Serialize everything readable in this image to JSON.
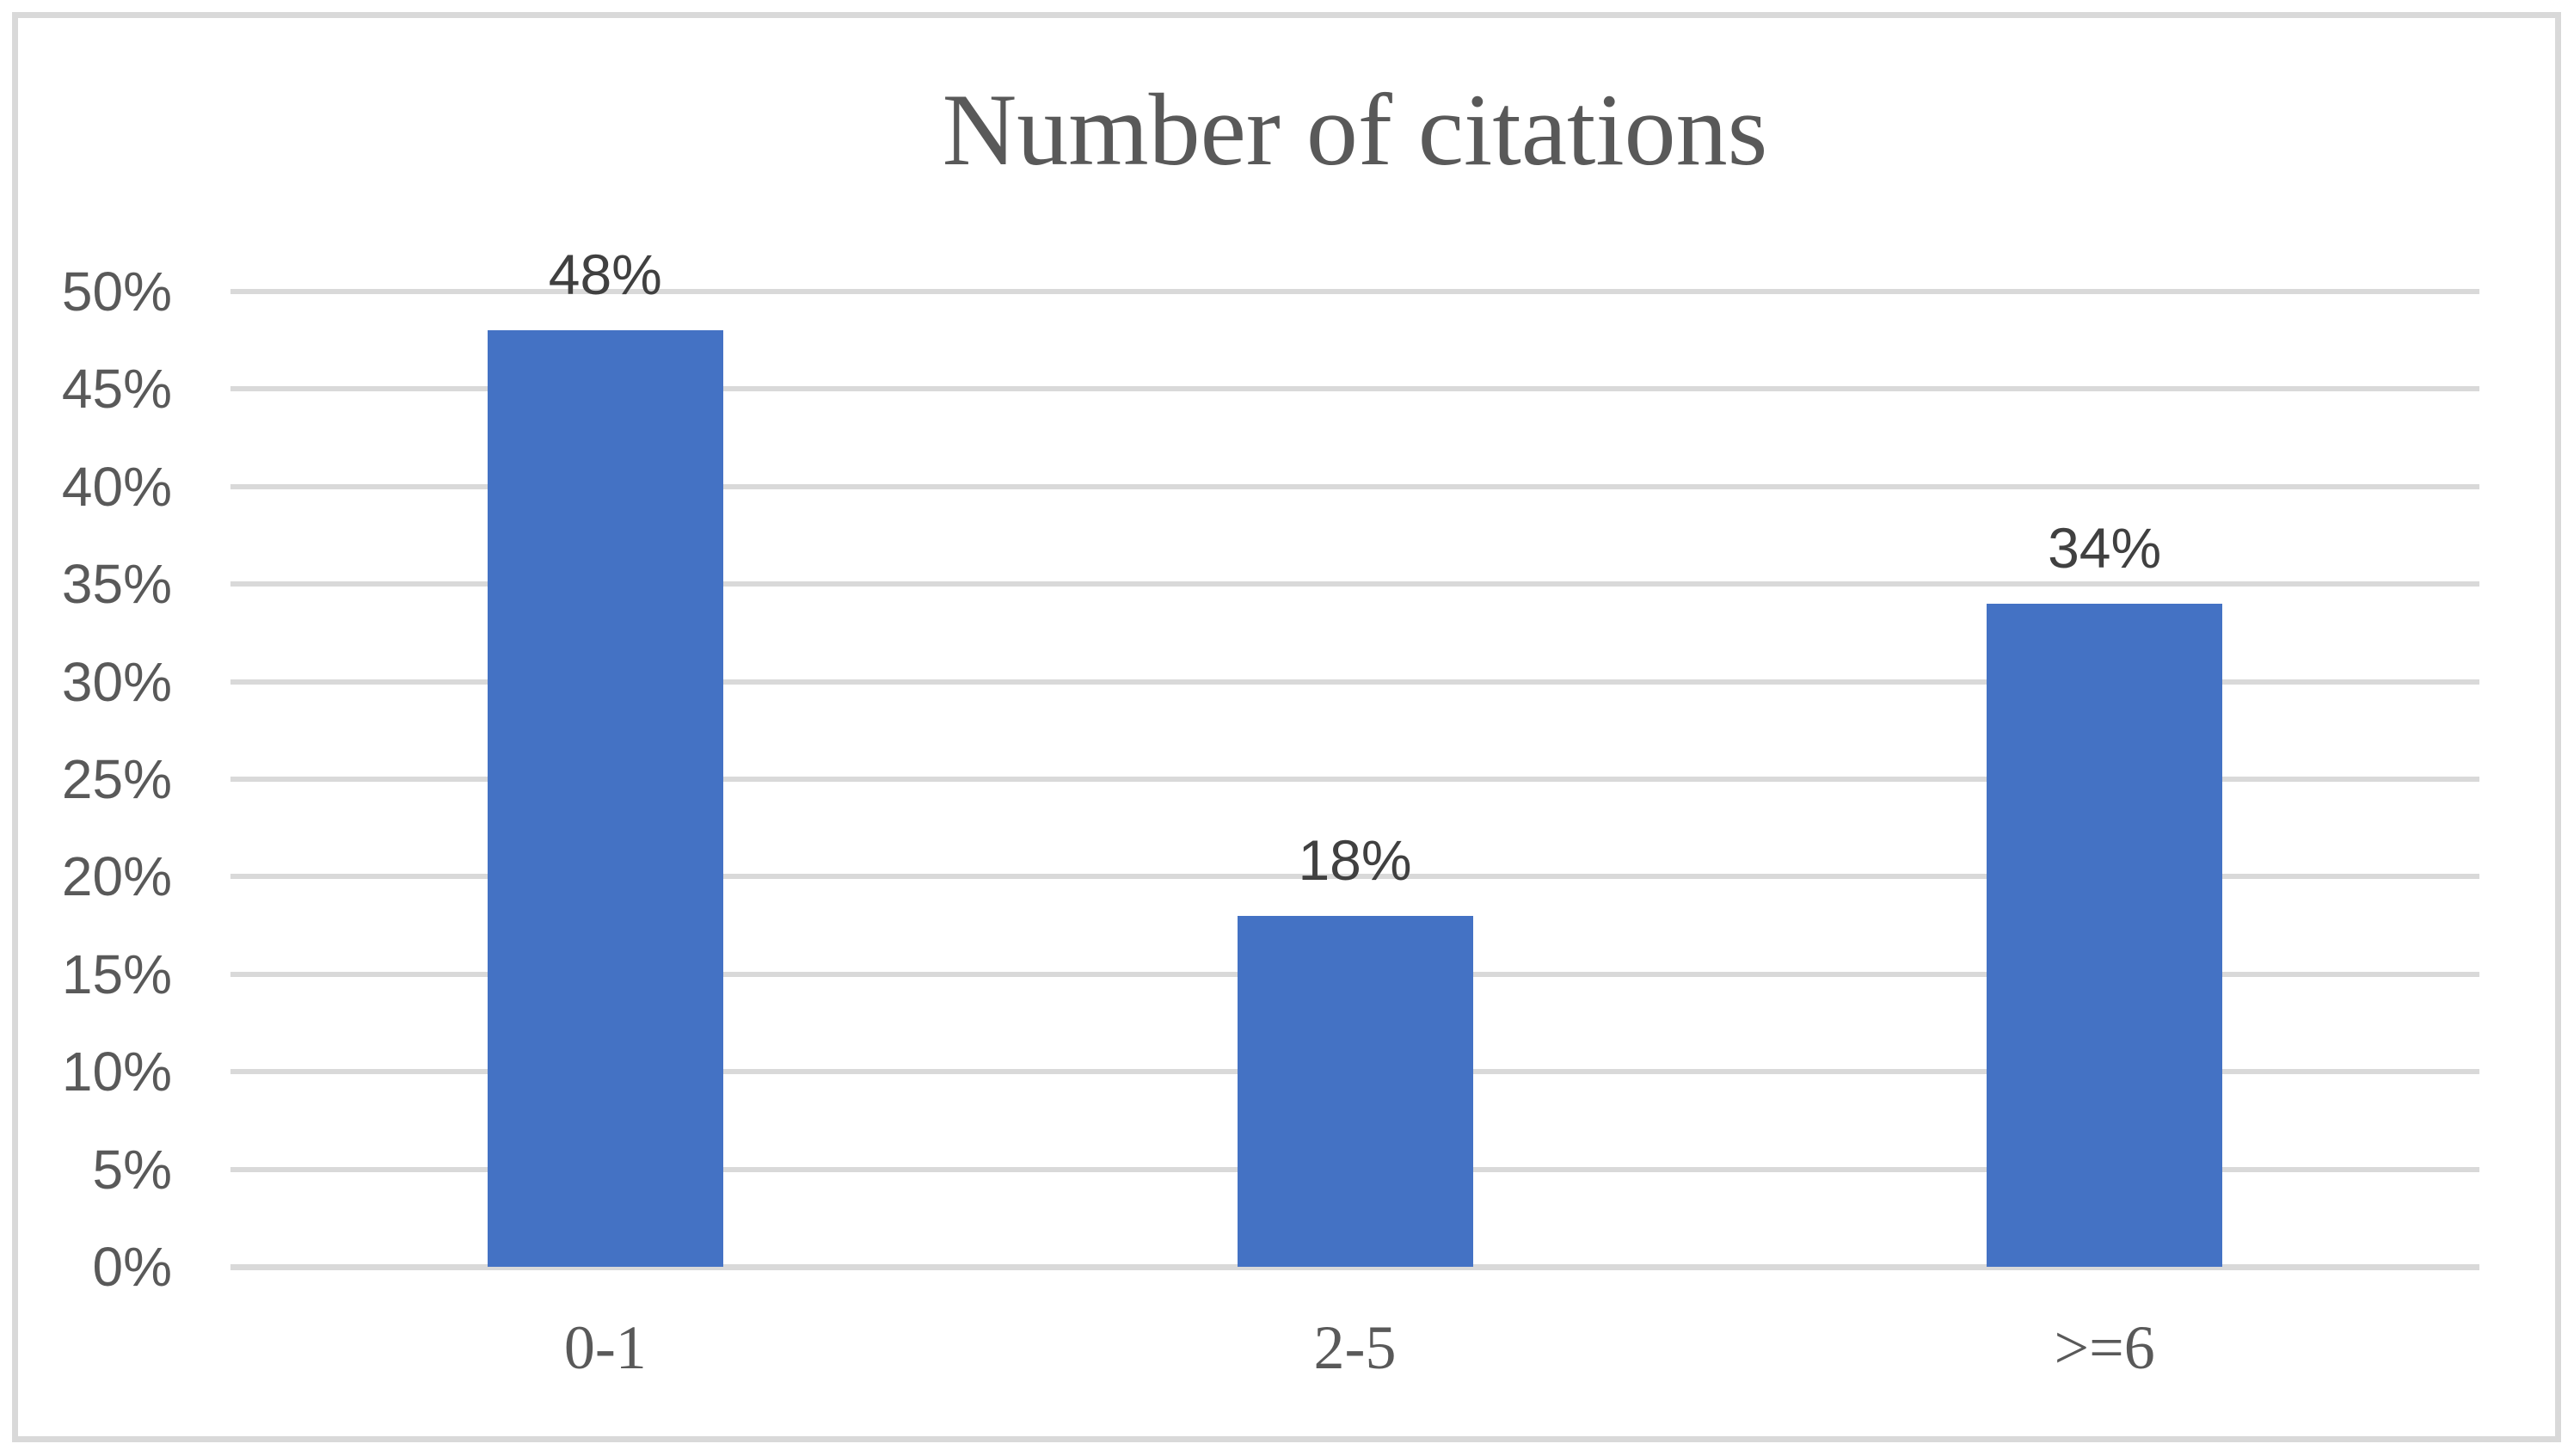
{
  "figure": {
    "background_color": "#FFFFFF",
    "frame_border_color": "#D9D9D9"
  },
  "chart_data": {
    "type": "bar",
    "title": "Number of citations",
    "categories": [
      "0-1",
      "2-5",
      ">=6"
    ],
    "values": [
      48,
      18,
      34
    ],
    "value_labels": [
      "48%",
      "18%",
      "34%"
    ],
    "xlabel": "",
    "ylabel": "",
    "ylim": [
      0,
      50
    ],
    "ytick_step": 5,
    "ytick_labels": [
      "0%",
      "5%",
      "10%",
      "15%",
      "20%",
      "25%",
      "30%",
      "35%",
      "40%",
      "45%",
      "50%"
    ],
    "grid": true,
    "legend": false,
    "bar_color": "#4472C4",
    "gridline_color": "#D9D9D9",
    "axis_label_color": "#595959",
    "data_label_color": "#404040",
    "title_color": "#595959"
  }
}
